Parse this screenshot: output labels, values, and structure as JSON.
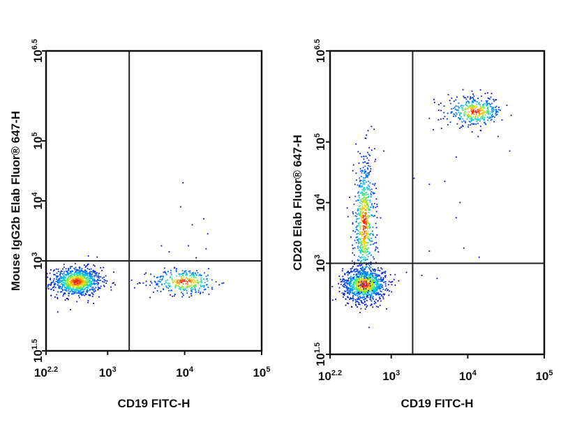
{
  "chart_data": [
    {
      "type": "scatter",
      "style": "density dot plot (flow cytometry)",
      "xscale": "log10",
      "yscale": "log10",
      "xlim": [
        2.2,
        5
      ],
      "ylim": [
        1.5,
        6.5
      ],
      "xlabel": "CD19 FITC-H",
      "ylabel": "Mouse IgG2b Elab Fluor® 647-H",
      "x_tick_labels": [
        {
          "base": "10",
          "exp": "2.2",
          "value": 2.2
        },
        {
          "base": "10",
          "exp": "3",
          "value": 3
        },
        {
          "base": "10",
          "exp": "4",
          "value": 4
        },
        {
          "base": "10",
          "exp": "5",
          "value": 5
        }
      ],
      "y_tick_labels": [
        {
          "base": "10",
          "exp": "1.5",
          "value": 1.5
        },
        {
          "base": "10",
          "exp": "3",
          "value": 3
        },
        {
          "base": "10",
          "exp": "4",
          "value": 4
        },
        {
          "base": "10",
          "exp": "5",
          "value": 5
        },
        {
          "base": "10",
          "exp": "6.5",
          "value": 6.5
        }
      ],
      "quadrant_gates": {
        "x": 3.28,
        "y": 3.0
      },
      "populations": [
        {
          "center": [
            2.6,
            2.65
          ],
          "spread": [
            0.16,
            0.12
          ],
          "events": 900
        },
        {
          "center": [
            4.0,
            2.65
          ],
          "spread": [
            0.22,
            0.11
          ],
          "events": 320
        }
      ],
      "sparse_events": [
        [
          3.95,
          3.9
        ],
        [
          3.98,
          4.3
        ],
        [
          4.1,
          3.6
        ],
        [
          4.25,
          3.7
        ],
        [
          4.3,
          3.45
        ],
        [
          4.05,
          3.25
        ],
        [
          3.7,
          3.25
        ],
        [
          3.8,
          3.15
        ],
        [
          4.15,
          3.05
        ],
        [
          4.28,
          3.2
        ],
        [
          2.75,
          3.08
        ],
        [
          3.35,
          2.55
        ],
        [
          3.1,
          2.6
        ],
        [
          4.45,
          2.6
        ]
      ]
    },
    {
      "type": "scatter",
      "style": "density dot plot (flow cytometry)",
      "xscale": "log10",
      "yscale": "log10",
      "xlim": [
        2.2,
        5
      ],
      "ylim": [
        1.5,
        6.5
      ],
      "xlabel": "CD19 FITC-H",
      "ylabel": "CD20 Elab Fluor® 647-H",
      "x_tick_labels": [
        {
          "base": "10",
          "exp": "2.2",
          "value": 2.2
        },
        {
          "base": "10",
          "exp": "3",
          "value": 3
        },
        {
          "base": "10",
          "exp": "4",
          "value": 4
        },
        {
          "base": "10",
          "exp": "5",
          "value": 5
        }
      ],
      "y_tick_labels": [
        {
          "base": "10",
          "exp": "1.5",
          "value": 1.5
        },
        {
          "base": "10",
          "exp": "3",
          "value": 3
        },
        {
          "base": "10",
          "exp": "4",
          "value": 4
        },
        {
          "base": "10",
          "exp": "5",
          "value": 5
        },
        {
          "base": "10",
          "exp": "6.5",
          "value": 6.5
        }
      ],
      "quadrant_gates": {
        "x": 3.28,
        "y": 3.0
      },
      "populations": [
        {
          "center": [
            2.65,
            2.65
          ],
          "spread": [
            0.14,
            0.14
          ],
          "events": 1000
        },
        {
          "center": [
            2.65,
            3.65
          ],
          "spread": [
            0.07,
            0.55
          ],
          "events": 650
        },
        {
          "center": [
            4.1,
            5.5
          ],
          "spread": [
            0.18,
            0.12
          ],
          "events": 380
        }
      ],
      "sparse_events": [
        [
          3.55,
          5.2
        ],
        [
          3.5,
          4.3
        ],
        [
          3.7,
          4.35
        ],
        [
          3.9,
          4.0
        ],
        [
          3.85,
          3.75
        ],
        [
          3.95,
          3.25
        ],
        [
          4.15,
          3.1
        ],
        [
          3.5,
          3.2
        ],
        [
          3.2,
          2.85
        ],
        [
          3.4,
          2.8
        ],
        [
          3.6,
          2.75
        ],
        [
          3.85,
          4.75
        ],
        [
          4.55,
          4.85
        ],
        [
          3.3,
          4.4
        ]
      ]
    }
  ]
}
